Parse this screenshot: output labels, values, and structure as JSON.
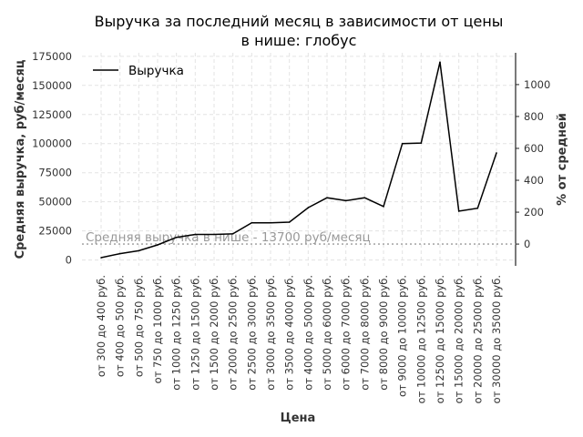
{
  "chart_data": {
    "type": "line",
    "title": [
      "Выручка за последний месяц в зависимости от цены",
      "в нише: глобус"
    ],
    "xlabel": "Цена",
    "ylabel": "Средняя выручка, руб/месяц",
    "y2label": "% от средней",
    "categories": [
      "от 300 до 400 руб.",
      "от 400 до 500 руб.",
      "от 500 до 750 руб.",
      "от 750 до 1000 руб.",
      "от 1000 до 1250 руб.",
      "от 1250 до 1500 руб.",
      "от 1500 до 2000 руб.",
      "от 2000 до 2500 руб.",
      "от 2500 до 3000 руб.",
      "от 3000 до 3500 руб.",
      "от 3500 до 4000 руб.",
      "от 4000 до 5000 руб.",
      "от 5000 до 6000 руб.",
      "от 6000 до 7000 руб.",
      "от 7000 до 8000 руб.",
      "от 8000 до 9000 руб.",
      "от 9000 до 10000 руб.",
      "от 10000 до 12500 руб.",
      "от 12500 до 15000 руб.",
      "от 15000 до 20000 руб.",
      "от 20000 до 25000 руб.",
      "от 30000 до 35000 руб."
    ],
    "series": [
      {
        "name": "Выручка",
        "color": "#000000",
        "values": [
          2000,
          5500,
          8000,
          13000,
          19500,
          22000,
          22000,
          22500,
          32000,
          32000,
          32500,
          45000,
          53500,
          51000,
          53500,
          46000,
          100000,
          100500,
          170000,
          42000,
          44500,
          92000
        ]
      }
    ],
    "ylim": [
      -5000,
      178000
    ],
    "yticks": [
      0,
      25000,
      50000,
      75000,
      100000,
      125000,
      150000,
      175000
    ],
    "y2ticks": [
      0,
      200,
      400,
      600,
      800,
      1000
    ],
    "average": 13700,
    "average_label": "Средняя выручка в нише - 13700 руб/месяц",
    "legend_position": "upper-left",
    "grid": true
  }
}
